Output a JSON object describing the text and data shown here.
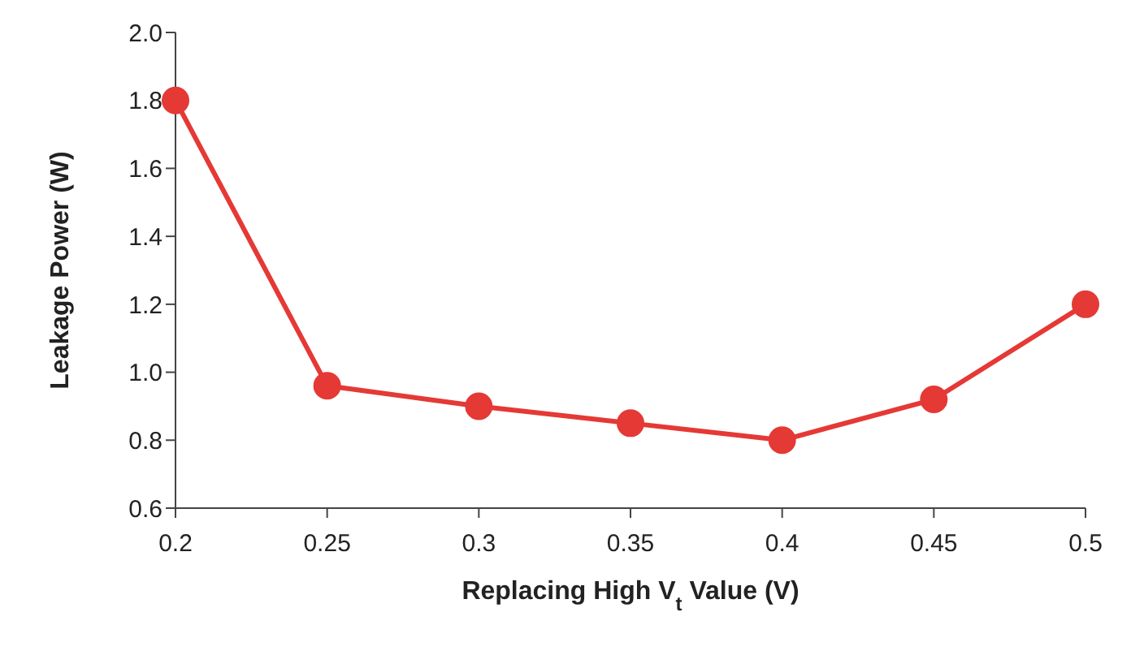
{
  "chart_data": {
    "type": "line",
    "xlabel": "Replacing High V$_{t}$ Value (V)",
    "ylabel": "Leakage Power (W)",
    "categories": [
      "0.2",
      "0.25",
      "0.3",
      "0.35",
      "0.4",
      "0.45",
      "0.5"
    ],
    "series": [
      {
        "color": "#e53935",
        "values": [
          1.8,
          0.96,
          0.9,
          0.85,
          0.8,
          0.92,
          1.2
        ]
      }
    ],
    "ylim": [
      0.6,
      2.0
    ],
    "yticks": [
      0.6,
      0.8,
      {
        "value": 1.0,
        "label": "1.0"
      },
      1.2,
      1.4,
      1.6,
      1.8,
      {
        "value": 2.0,
        "label": "2.0"
      }
    ],
    "grid": false,
    "legend": false,
    "marker": "circle",
    "line_style": "solid"
  }
}
